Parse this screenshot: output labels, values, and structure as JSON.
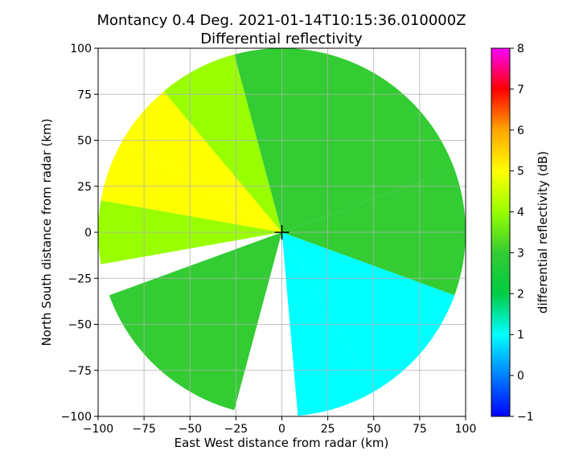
{
  "chart_data": {
    "type": "heatmap",
    "title": "Montancy 0.4 Deg. 2021-01-14T10:15:36.010000Z",
    "subtitle": "Differential reflectivity",
    "xlabel": "East West distance from radar (km)",
    "ylabel": "North South distance from radar (km)",
    "xlim": [
      -100,
      100
    ],
    "ylim": [
      -100,
      100
    ],
    "xticks": [
      -100,
      -75,
      -50,
      -25,
      0,
      25,
      50,
      75,
      100
    ],
    "yticks": [
      -100,
      -75,
      -50,
      -25,
      0,
      25,
      50,
      75,
      100
    ],
    "grid": true,
    "radar_max_range_km": 100,
    "radar_marker": "+",
    "colorbar": {
      "label": "differential reflectivity (dB)",
      "range": [
        -1,
        8
      ],
      "ticks": [
        -1,
        0,
        1,
        2,
        3,
        4,
        5,
        6,
        7,
        8
      ],
      "colormap": [
        "#0000ff",
        "#0080ff",
        "#00ffff",
        "#00cc44",
        "#33cc33",
        "#99ff00",
        "#ffff00",
        "#ffa500",
        "#ff0000",
        "#ff00ff"
      ]
    },
    "regions": [
      {
        "from_deg": 0,
        "to_deg": 70,
        "value": 2.6
      },
      {
        "from_deg": 70,
        "to_deg": 90,
        "value": 2.8
      },
      {
        "from_deg": 90,
        "to_deg": 110,
        "value": 3.0
      },
      {
        "from_deg": 110,
        "to_deg": 150,
        "value": 0.8
      },
      {
        "from_deg": 150,
        "to_deg": 175,
        "value": 1.2
      },
      {
        "from_deg": 195,
        "to_deg": 250,
        "value": 2.6
      },
      {
        "from_deg": 260,
        "to_deg": 280,
        "value": 3.6
      },
      {
        "from_deg": 280,
        "to_deg": 300,
        "value": 5.4
      },
      {
        "from_deg": 300,
        "to_deg": 320,
        "value": 5.0
      },
      {
        "from_deg": 320,
        "to_deg": 345,
        "value": 4.0
      },
      {
        "from_deg": 345,
        "to_deg": 360,
        "value": 2.6
      }
    ]
  }
}
